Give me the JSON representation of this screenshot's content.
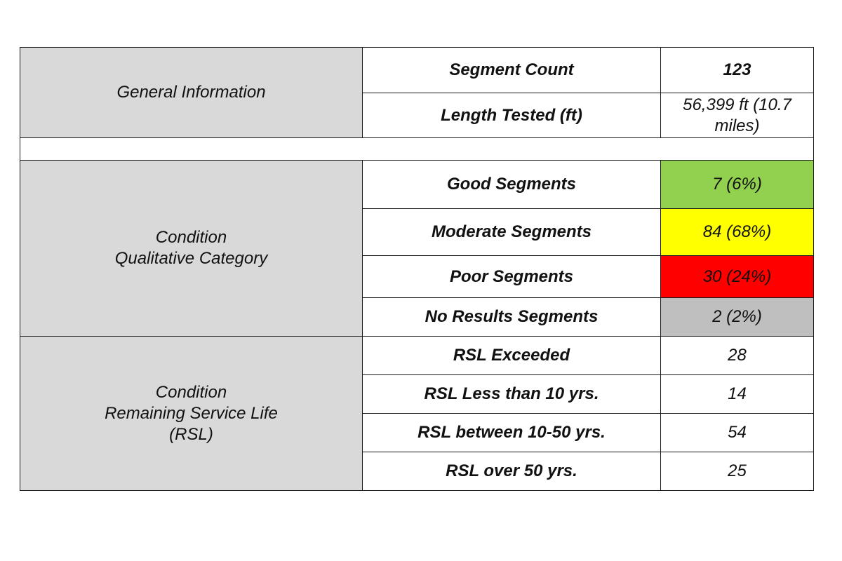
{
  "general": {
    "category": "General Information",
    "rows": [
      {
        "label": "Segment Count",
        "value": "123"
      },
      {
        "label": "Length Tested (ft)",
        "value_line1": "56,399 ft (10.7",
        "value_line2": "miles)"
      }
    ]
  },
  "qualitative": {
    "category_line1": "Condition",
    "category_line2": "Qualitative Category",
    "rows": [
      {
        "label": "Good Segments",
        "value": "7 (6%)",
        "color": "#92d050"
      },
      {
        "label": "Moderate Segments",
        "value": "84 (68%)",
        "color": "#ffff00"
      },
      {
        "label": "Poor Segments",
        "value": "30 (24%)",
        "color": "#ff0000"
      },
      {
        "label": "No Results Segments",
        "value": "2 (2%)",
        "color": "#bfbfbf"
      }
    ]
  },
  "rsl": {
    "category_line1": "Condition",
    "category_line2": "Remaining Service Life",
    "category_line3": "(RSL)",
    "rows": [
      {
        "label": "RSL Exceeded",
        "value": "28"
      },
      {
        "label": "RSL Less than 10 yrs.",
        "value": "14"
      },
      {
        "label": "RSL between 10-50 yrs.",
        "value": "54"
      },
      {
        "label": "RSL over 50 yrs.",
        "value": "25"
      }
    ]
  }
}
